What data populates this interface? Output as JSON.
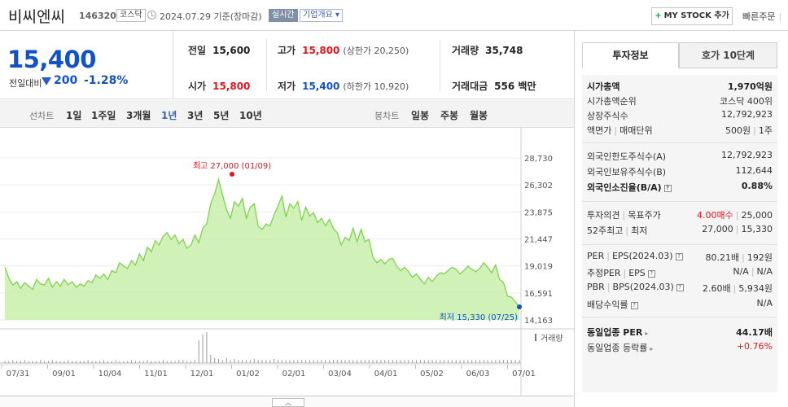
{
  "header": {
    "stock_name": "비씨엔씨",
    "stock_code": "146320",
    "market": "코스닥",
    "date_text": "2024.07.29 기준(장마감)",
    "live_badge": "실시간",
    "company_info": "기업개요",
    "mystock_label": "MY STOCK 추가",
    "quick_order": "빠른주문"
  },
  "quote": {
    "price": "15,400",
    "change_label": "전일대비",
    "change_amount": "200",
    "change_rate": "-1.28%",
    "prev_close_label": "전일",
    "prev_close": "15,600",
    "high_label": "고가",
    "high": "15,800",
    "upper_limit": "(상한가 20,250)",
    "volume_label": "거래량",
    "volume": "35,748",
    "open_label": "시가",
    "open": "15,800",
    "low_label": "저가",
    "low": "15,400",
    "lower_limit": "(하한가 10,920)",
    "amount_label": "거래대금",
    "amount": "556 백만"
  },
  "tabs": {
    "line_label": "선차트",
    "line_items": [
      "1일",
      "1주일",
      "3개월",
      "1년",
      "3년",
      "5년",
      "10년"
    ],
    "active": "1년",
    "candle_label": "봉차트",
    "candle_items": [
      "일봉",
      "주봉",
      "월봉"
    ]
  },
  "chart_data": {
    "type": "area",
    "y_ticks": [
      "28,730",
      "26,302",
      "23,875",
      "21,447",
      "19,019",
      "16,591",
      "14,163"
    ],
    "ylim": [
      14163,
      28730
    ],
    "x_ticks": [
      "07/31",
      "09/01",
      "10/04",
      "11/01",
      "12/01",
      "01/02",
      "02/01",
      "03/04",
      "04/01",
      "05/02",
      "06/03",
      "07/01"
    ],
    "high_annotation": "최고 27,000 (01/09)",
    "low_annotation": "최저 15,330 (07/25)",
    "volume_legend": "거래량",
    "colors": {
      "line": "#7fd24c",
      "fill": "#c8eeaa",
      "high": "#e4141c",
      "low": "#1152c9"
    },
    "values": [
      18900,
      17900,
      17300,
      17600,
      17000,
      17500,
      17200,
      16900,
      17800,
      17400,
      17300,
      17900,
      17100,
      17600,
      17200,
      17800,
      17300,
      17600,
      17100,
      17400,
      17200,
      17700,
      17500,
      18200,
      17900,
      18300,
      17800,
      18600,
      18400,
      19300,
      19000,
      18800,
      19500,
      19100,
      20100,
      19500,
      20700,
      20300,
      21300,
      20900,
      21700,
      22000,
      21400,
      21800,
      21000,
      21400,
      20600,
      20900,
      21800,
      21100,
      22400,
      22800,
      24600,
      25500,
      26800,
      25400,
      24100,
      23300,
      24800,
      24400,
      25100,
      23300,
      24300,
      24600,
      22600,
      22300,
      22800,
      22600,
      23600,
      24400,
      25300,
      23400,
      24600,
      24200,
      24800,
      23100,
      24300,
      23500,
      23800,
      22900,
      23300,
      22600,
      23200,
      22400,
      22000,
      20900,
      21600,
      21300,
      22400,
      21200,
      22300,
      21200,
      21400,
      19800,
      19300,
      19600,
      19200,
      19600,
      19700,
      19000,
      18600,
      18900,
      18500,
      18000,
      18300,
      17800,
      17400,
      18000,
      17600,
      18100,
      18400,
      18300,
      18600,
      18900,
      18700,
      18300,
      18600,
      19000,
      18700,
      18500,
      18800,
      19300,
      18900,
      18400,
      19100,
      17800,
      17500,
      16300,
      16200,
      15800,
      15330
    ],
    "volume_bars": [
      2,
      2,
      3,
      2,
      2,
      3,
      2,
      2,
      2,
      3,
      2,
      2,
      3,
      2,
      2,
      2,
      3,
      2,
      2,
      2,
      2,
      3,
      2,
      2,
      2,
      3,
      2,
      2,
      3,
      2,
      2,
      2,
      3,
      2,
      2,
      2,
      3,
      2,
      2,
      2,
      3,
      2,
      2,
      2,
      3,
      3,
      2,
      2,
      3,
      22,
      28,
      30,
      8,
      5,
      4,
      3,
      5,
      3,
      4,
      3,
      3,
      3,
      3,
      4,
      3,
      3,
      3,
      3,
      4,
      3,
      3,
      3,
      3,
      3,
      3,
      3,
      3,
      3,
      3,
      3,
      3,
      3,
      3,
      3,
      3,
      3,
      3,
      3,
      3,
      3,
      3,
      3,
      3,
      3,
      3,
      3,
      3,
      3,
      3,
      3,
      3,
      3,
      3,
      3,
      3,
      3,
      3,
      3,
      3,
      3,
      3,
      3,
      3,
      3,
      3,
      3,
      3,
      3,
      3,
      3,
      3,
      3,
      3,
      3,
      3,
      3,
      3,
      3,
      3,
      3,
      3
    ]
  },
  "panel": {
    "tab_active": "투자정보",
    "tab_inactive": "호가 10단계",
    "market_cap_label": "시가총액",
    "market_cap": "1,970억원",
    "cap_rank_label": "시가총액순위",
    "cap_rank": "코스닥 400위",
    "shares_label": "상장주식수",
    "shares": "12,792,923",
    "par_label": "액면가",
    "unit_label": "매매단위",
    "par": "500원",
    "unit": "1주",
    "foreign_limit_label": "외국인한도주식수(A)",
    "foreign_limit": "12,792,923",
    "foreign_hold_label": "외국인보유주식수(B)",
    "foreign_hold": "112,644",
    "foreign_rate_label": "외국인소진율(B/A)",
    "foreign_rate": "0.88%",
    "opinion_label": "투자의견",
    "target_label": "목표주가",
    "opinion": "4.00매수",
    "target": "25,000",
    "w52_label": "52주최고",
    "w52_low_label": "최저",
    "w52_high": "27,000",
    "w52_low": "15,330",
    "per_label": "PER",
    "eps_label": "EPS(2024.03)",
    "per": "80.21배",
    "eps": "192원",
    "est_per_label": "추정PER",
    "est_eps_label": "EPS",
    "est_per": "N/A",
    "est_eps": "N/A",
    "pbr_label": "PBR",
    "bps_label": "BPS(2024.03)",
    "pbr": "2.60배",
    "bps": "5,934원",
    "div_label": "배당수익률",
    "div": "N/A",
    "sector_per_label": "동일업종 PER",
    "sector_per": "44.17배",
    "sector_chg_label": "동일업종 등락률",
    "sector_chg": "+0.76%"
  },
  "footer": {
    "collapse_icon": "chevron-up-icon"
  }
}
